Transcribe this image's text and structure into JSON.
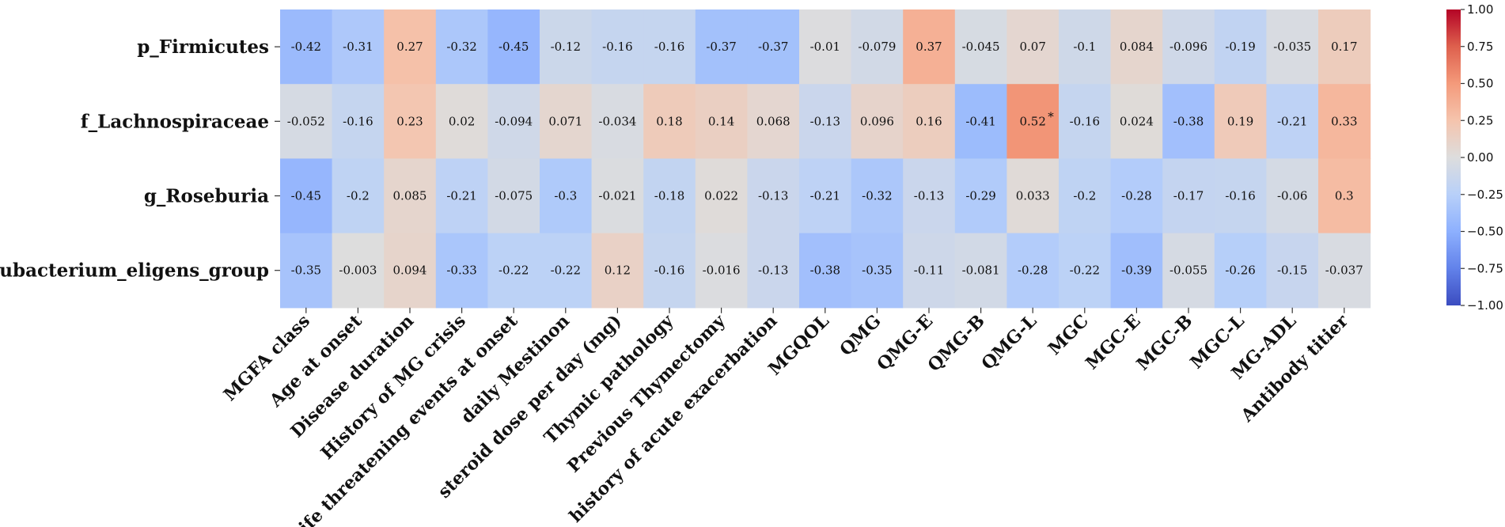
{
  "chart_data": {
    "type": "heatmap",
    "title": "",
    "xlabel": "",
    "ylabel": "",
    "rows": [
      "p_Firmicutes",
      "f_Lachnospiraceae",
      "g_Roseburia",
      "g_Eubacterium_eligens_group"
    ],
    "columns": [
      "MGFA class",
      "Age at onset",
      "Disease duration",
      "History of MG crisis",
      "Life threatening events at onset",
      "daily Mestinon",
      "steroid dose per day (mg)",
      "Thymic pathology",
      "Previous Thymectomy",
      "history of acute exacerbation",
      "MGQOL",
      "QMG",
      "QMG-E",
      "QMG-B",
      "QMG-L",
      "MGC",
      "MGC-E",
      "MGC-B",
      "MGC-L",
      "MG-ADL",
      "Antibody titier"
    ],
    "values": [
      [
        -0.42,
        -0.31,
        0.27,
        -0.32,
        -0.45,
        -0.12,
        -0.16,
        -0.16,
        -0.37,
        -0.37,
        -0.01,
        -0.079,
        0.37,
        -0.045,
        0.07,
        -0.1,
        0.084,
        -0.096,
        -0.19,
        -0.035,
        0.17
      ],
      [
        -0.052,
        -0.16,
        0.23,
        0.02,
        -0.094,
        0.071,
        -0.034,
        0.18,
        0.14,
        0.068,
        -0.13,
        0.096,
        0.16,
        -0.41,
        0.52,
        -0.16,
        0.024,
        -0.38,
        0.19,
        -0.21,
        0.33
      ],
      [
        -0.45,
        -0.2,
        0.085,
        -0.21,
        -0.075,
        -0.3,
        -0.021,
        -0.18,
        0.022,
        -0.13,
        -0.21,
        -0.32,
        -0.13,
        -0.29,
        0.033,
        -0.2,
        -0.28,
        -0.17,
        -0.16,
        -0.06,
        0.3
      ],
      [
        -0.35,
        -0.003,
        0.094,
        -0.33,
        -0.22,
        -0.22,
        0.12,
        -0.16,
        -0.016,
        -0.13,
        -0.38,
        -0.35,
        -0.11,
        -0.081,
        -0.28,
        -0.22,
        -0.39,
        -0.055,
        -0.26,
        -0.15,
        -0.037
      ]
    ],
    "labels": [
      [
        "-0.42",
        "-0.31",
        "0.27",
        "-0.32",
        "-0.45",
        "-0.12",
        "-0.16",
        "-0.16",
        "-0.37",
        "-0.37",
        "-0.01",
        "-0.079",
        "0.37",
        "-0.045",
        "0.07",
        "-0.1",
        "0.084",
        "-0.096",
        "-0.19",
        "-0.035",
        "0.17"
      ],
      [
        "-0.052",
        "-0.16",
        "0.23",
        "0.02",
        "-0.094",
        "0.071",
        "-0.034",
        "0.18",
        "0.14",
        "0.068",
        "-0.13",
        "0.096",
        "0.16",
        "-0.41",
        "0.52",
        "-0.16",
        "0.024",
        "-0.38",
        "0.19",
        "-0.21",
        "0.33"
      ],
      [
        "-0.45",
        "-0.2",
        "0.085",
        "-0.21",
        "-0.075",
        "-0.3",
        "-0.021",
        "-0.18",
        "0.022",
        "-0.13",
        "-0.21",
        "-0.32",
        "-0.13",
        "-0.29",
        "0.033",
        "-0.2",
        "-0.28",
        "-0.17",
        "-0.16",
        "-0.06",
        "0.3"
      ],
      [
        "-0.35",
        "-0.003",
        "0.094",
        "-0.33",
        "-0.22",
        "-0.22",
        "0.12",
        "-0.16",
        "-0.016",
        "-0.13",
        "-0.38",
        "-0.35",
        "-0.11",
        "-0.081",
        "-0.28",
        "-0.22",
        "-0.39",
        "-0.055",
        "-0.26",
        "-0.15",
        "-0.037"
      ]
    ],
    "significance": [
      {
        "row": 1,
        "col": 14,
        "mark": "*"
      }
    ],
    "colorbar": {
      "colormap": "coolwarm",
      "range": [
        -1.0,
        1.0
      ],
      "ticks": [
        1.0,
        0.75,
        0.5,
        0.25,
        0.0,
        -0.25,
        -0.5,
        -0.75,
        -1.0
      ],
      "tick_labels": [
        "1.00",
        "0.75",
        "0.50",
        "0.25",
        "0.00",
        "−0.25",
        "−0.50",
        "−0.75",
        "−1.00"
      ]
    }
  }
}
